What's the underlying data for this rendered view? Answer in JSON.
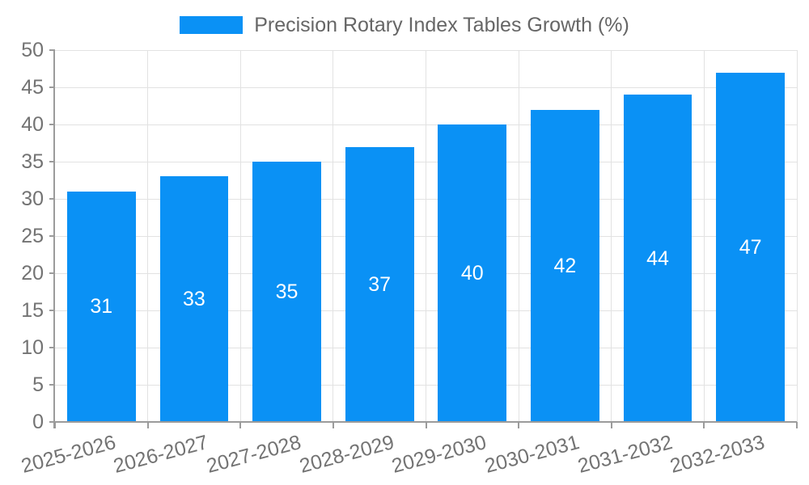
{
  "chart_data": {
    "type": "bar",
    "title": "Precision Rotary Index Tables Growth (%)",
    "categories": [
      "2025-2026",
      "2026-2027",
      "2027-2028",
      "2028-2029",
      "2029-2030",
      "2030-2031",
      "2031-2032",
      "2032-2033"
    ],
    "values": [
      31,
      33,
      35,
      37,
      40,
      42,
      44,
      47
    ],
    "series": [
      {
        "name": "Precision Rotary Index Tables Growth (%)",
        "values": [
          31,
          33,
          35,
          37,
          40,
          42,
          44,
          47
        ]
      }
    ],
    "xlabel": "",
    "ylabel": "",
    "ylim": [
      0,
      50
    ],
    "y_ticks": [
      0,
      5,
      10,
      15,
      20,
      25,
      30,
      35,
      40,
      45,
      50
    ],
    "grid": true,
    "legend_position": "top",
    "value_labels_inside_bars": true,
    "x_label_rotation_deg": -15,
    "colors": {
      "bar": "#0a91f5",
      "value_label": "#ffffff",
      "axis": "#9b9b9b",
      "grid": "#e2e2e2",
      "tick_text": "#737373",
      "title_text": "#666666"
    }
  }
}
